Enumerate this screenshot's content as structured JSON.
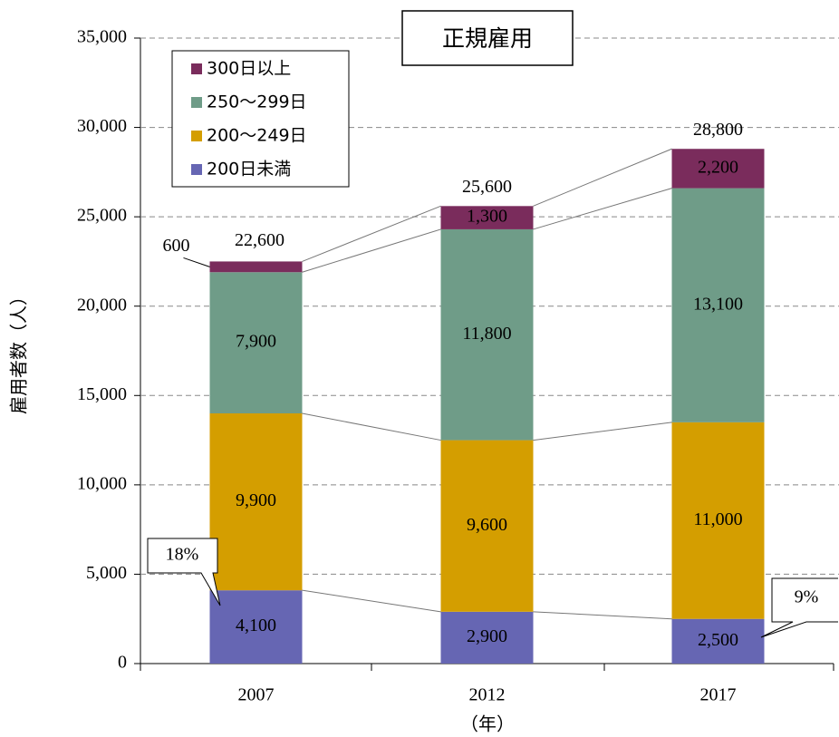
{
  "chart_data": {
    "type": "stacked-bar",
    "title": "正規雇用",
    "y_label": "雇用者数（人）",
    "x_label": "（年）",
    "categories": [
      "2007",
      "2012",
      "2017"
    ],
    "series": [
      {
        "name": "200日未満",
        "color": "#6666b3",
        "label_color": "#ffffff",
        "values": [
          4100,
          2900,
          2500
        ],
        "value_labels": [
          "4,100",
          "2,900",
          "2,500"
        ]
      },
      {
        "name": "200〜249日",
        "color": "#d49e00",
        "label_color": "#000000",
        "values": [
          9900,
          9600,
          11000
        ],
        "value_labels": [
          "9,900",
          "9,600",
          "11,000"
        ]
      },
      {
        "name": "250〜299日",
        "color": "#6f9c88",
        "label_color": "#000000",
        "values": [
          7900,
          11800,
          13100
        ],
        "value_labels": [
          "7,900",
          "11,800",
          "13,100"
        ]
      },
      {
        "name": "300日以上",
        "color": "#7a2c5c",
        "label_color": "#ffffff",
        "values": [
          600,
          1300,
          2200
        ],
        "value_labels": [
          "600",
          "1,300",
          "2,200"
        ]
      }
    ],
    "totals": [
      22600,
      25600,
      28800
    ],
    "total_labels": [
      "22,600",
      "25,600",
      "28,800"
    ],
    "annotations": [
      "18%",
      "9%"
    ],
    "ylim": [
      0,
      35000
    ],
    "yticks": [
      0,
      {
        "value": 5000,
        "label": "5,000"
      },
      {
        "value": 10000,
        "label": "10,000"
      },
      {
        "value": 15000,
        "label": "15,000"
      },
      {
        "value": 20000,
        "label": "20,000"
      },
      {
        "value": 25000,
        "label": "25,000"
      },
      {
        "value": 30000,
        "label": "30,000"
      },
      {
        "value": 35000,
        "label": "35,000"
      }
    ],
    "grid": true,
    "legend": "upper left"
  }
}
